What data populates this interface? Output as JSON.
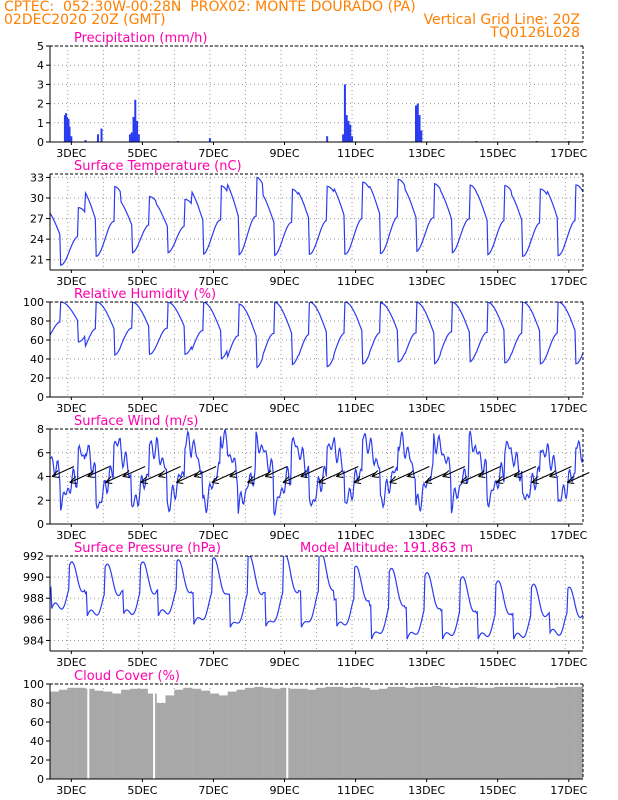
{
  "header": {
    "line1_left": "CPTEC:  052:30W-00:28N  PROX02: MONTE DOURADO (PA)",
    "line2_left": "02DEC2020 20Z (GMT)",
    "line2_right": "Vertical Grid Line: 20Z",
    "line3_right": "TQ0126L028"
  },
  "colors": {
    "header": "#ff7f00",
    "title": "#ff00aa",
    "series": "#2b3cf0",
    "cloud": "#a8a8a8",
    "wind_arrow": "#000000"
  },
  "x_ticks": [
    "3DEC",
    "5DEC",
    "7DEC",
    "9DEC",
    "11DEC",
    "13DEC",
    "15DEC",
    "17DEC"
  ],
  "chart_data": [
    {
      "type": "bar",
      "title": "Precipitation (mm/h)",
      "ylim": [
        0,
        5
      ],
      "yticks": [
        "0",
        "1",
        "2",
        "3",
        "4",
        "5"
      ],
      "x_unit": "days from 02DEC2020 20Z",
      "xlim": [
        0,
        15
      ],
      "bars": [
        [
          0.42,
          1.4
        ],
        [
          0.45,
          1.5
        ],
        [
          0.48,
          1.3
        ],
        [
          0.52,
          1.2
        ],
        [
          0.55,
          0.8
        ],
        [
          0.6,
          0.3
        ],
        [
          1.0,
          0.1
        ],
        [
          1.35,
          0.4
        ],
        [
          1.45,
          0.7
        ],
        [
          2.25,
          0.4
        ],
        [
          2.3,
          0.5
        ],
        [
          2.35,
          1.3
        ],
        [
          2.4,
          2.2
        ],
        [
          2.45,
          1.1
        ],
        [
          2.5,
          0.4
        ],
        [
          3.6,
          0.05
        ],
        [
          4.5,
          0.2
        ],
        [
          7.8,
          0.3
        ],
        [
          8.25,
          0.4
        ],
        [
          8.3,
          3.0
        ],
        [
          8.35,
          1.4
        ],
        [
          8.4,
          1.1
        ],
        [
          8.45,
          0.9
        ],
        [
          8.5,
          0.3
        ],
        [
          10.3,
          1.9
        ],
        [
          10.35,
          2.0
        ],
        [
          10.4,
          1.4
        ],
        [
          10.45,
          0.6
        ],
        [
          12.0,
          0.05
        ],
        [
          13.7,
          0.05
        ],
        [
          14.6,
          0.05
        ]
      ]
    },
    {
      "type": "line",
      "title": "Surface Temperature (nC)",
      "ylim": [
        19.5,
        33.5
      ],
      "yticks": [
        "21",
        "24",
        "27",
        "30",
        "33"
      ],
      "x_unit": "days from 02DEC2020 20Z",
      "daily_max": [
        28.6,
        31.7,
        30.2,
        29.8,
        31.8,
        33.0,
        31.3,
        31.7,
        32.3,
        32.7,
        32.1,
        31.9,
        31.8,
        31.3,
        31.9
      ],
      "daily_min": [
        20.2,
        21.5,
        22.0,
        22.0,
        21.8,
        21.7,
        21.6,
        21.8,
        21.8,
        21.9,
        22.2,
        22.0,
        21.7,
        21.5,
        21.6
      ]
    },
    {
      "type": "line",
      "title": "Relative Humidity (%)",
      "ylim": [
        0,
        100
      ],
      "yticks": [
        "0",
        "20",
        "40",
        "60",
        "80",
        "100"
      ],
      "x_unit": "days from 02DEC2020 20Z",
      "daily_min": [
        58,
        44,
        45,
        45,
        40,
        31,
        34,
        32,
        35,
        37,
        35,
        37,
        36,
        35,
        35
      ],
      "daily_max": [
        100,
        100,
        100,
        100,
        100,
        98,
        100,
        100,
        100,
        99,
        100,
        100,
        100,
        100,
        100
      ]
    },
    {
      "type": "line",
      "title": "Surface Wind (m/s)",
      "ylim": [
        0,
        8
      ],
      "yticks": [
        "0",
        "2",
        "4",
        "6",
        "8"
      ],
      "x_unit": "days from 02DEC2020 20Z",
      "daily_max": [
        6.0,
        7.0,
        6.6,
        7.0,
        7.4,
        6.8,
        6.8,
        6.8,
        7.2,
        7.0,
        7.0,
        6.9,
        6.6,
        6.3,
        6.5
      ],
      "daily_min": [
        2.0,
        1.5,
        1.5,
        1.6,
        1.5,
        1.6,
        1.5,
        1.6,
        1.8,
        2.0,
        1.5,
        1.9,
        2.1,
        2.0,
        2.0
      ],
      "arrows_at_y": 4
    },
    {
      "type": "line",
      "title": "Surface Pressure (hPa)",
      "annotation": "Model Altitude: 191.863 m",
      "ylim": [
        983,
        992
      ],
      "yticks": [
        "984",
        "986",
        "988",
        "990",
        "992"
      ],
      "x_unit": "days from 02DEC2020 20Z",
      "daily_max": [
        990.6,
        990.4,
        990.6,
        990.8,
        991.0,
        991.2,
        991.4,
        991.8,
        990.2,
        990.0,
        989.6,
        989.2,
        988.8,
        988.5,
        988.2
      ],
      "daily_min": [
        986.5,
        985.8,
        985.8,
        985.8,
        985.0,
        984.5,
        984.6,
        984.5,
        984.6,
        983.6,
        983.6,
        983.6,
        983.6,
        983.6,
        984.0
      ]
    },
    {
      "type": "area",
      "title": "Cloud Cover (%)",
      "ylim": [
        0,
        100
      ],
      "yticks": [
        "0",
        "20",
        "40",
        "60",
        "80",
        "100"
      ],
      "x_unit": "days from 02DEC2020 20Z",
      "values": [
        92,
        94,
        96,
        96,
        95,
        93,
        92,
        90,
        94,
        95,
        95,
        90,
        80,
        88,
        94,
        96,
        95,
        93,
        90,
        88,
        92,
        94,
        96,
        97,
        96,
        95,
        96,
        95,
        95,
        94,
        96,
        97,
        97,
        96,
        97,
        96,
        94,
        95,
        97,
        97,
        96,
        97,
        97,
        98,
        97,
        96,
        97,
        97,
        96,
        96,
        97,
        97,
        97,
        97,
        96,
        96,
        96,
        97,
        97,
        97
      ]
    }
  ]
}
